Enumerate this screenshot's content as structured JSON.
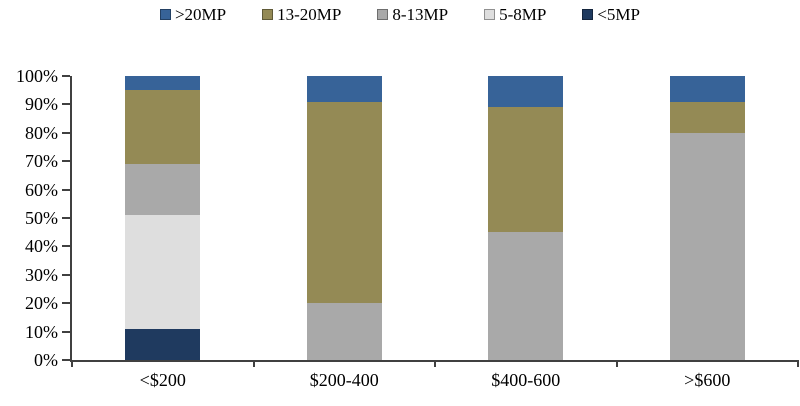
{
  "chart_data": {
    "type": "bar",
    "stacked": true,
    "percent": true,
    "title": "",
    "xlabel": "",
    "ylabel": "",
    "grid": false,
    "legend_position": "top",
    "axis_color": "#404040",
    "background_color": "#ffffff",
    "ylim": [
      0,
      100
    ],
    "y_ticks": [
      "0%",
      "10%",
      "20%",
      "30%",
      "40%",
      "50%",
      "60%",
      "70%",
      "80%",
      "90%",
      "100%"
    ],
    "categories": [
      "<$200",
      "$200-400",
      "$400-600",
      ">$600"
    ],
    "series": [
      {
        "name": ">20MP",
        "color": "#376398",
        "values": [
          5,
          9,
          11,
          9
        ]
      },
      {
        "name": "13-20MP",
        "color": "#948A55",
        "values": [
          26,
          71,
          44,
          11
        ]
      },
      {
        "name": "8-13MP",
        "color": "#A9A9A9",
        "values": [
          18,
          20,
          45,
          80
        ]
      },
      {
        "name": "5-8MP",
        "color": "#DEDEDE",
        "values": [
          40,
          0,
          0,
          0
        ]
      },
      {
        "name": "<5MP",
        "color": "#1F3A5F",
        "values": [
          11,
          0,
          0,
          0
        ]
      }
    ]
  }
}
